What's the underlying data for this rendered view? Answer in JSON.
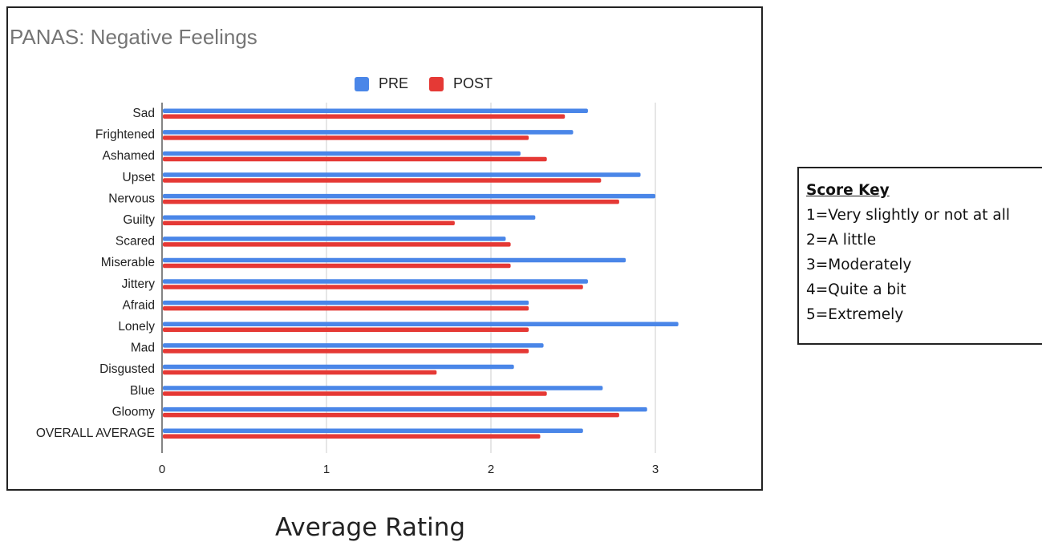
{
  "chart_data": {
    "type": "bar",
    "orientation": "horizontal",
    "title": "PANAS: Negative Feelings",
    "xlabel": "Average Rating",
    "xlim": [
      0,
      3.25
    ],
    "xticks": [
      "0",
      "1",
      "2",
      "3"
    ],
    "grid": true,
    "legend_placement": "top-center",
    "categories": [
      "Sad",
      "Frightened",
      "Ashamed",
      "Upset",
      "Nervous",
      "Guilty",
      "Scared",
      "Miserable",
      "Jittery",
      "Afraid",
      "Lonely",
      "Mad",
      "Disgusted",
      "Blue",
      "Gloomy",
      "OVERALL AVERAGE"
    ],
    "series": [
      {
        "name": "PRE",
        "color": "#4a86e8",
        "values": [
          2.59,
          2.5,
          2.18,
          2.91,
          3.0,
          2.27,
          2.09,
          2.82,
          2.59,
          2.23,
          3.14,
          2.32,
          2.14,
          2.68,
          2.95,
          2.56
        ]
      },
      {
        "name": "POST",
        "color": "#e53935",
        "values": [
          2.45,
          2.23,
          2.34,
          2.67,
          2.78,
          1.78,
          2.12,
          2.12,
          2.56,
          2.23,
          2.23,
          2.23,
          1.67,
          2.34,
          2.78,
          2.3
        ]
      }
    ]
  },
  "score_key": {
    "title": "Score Key",
    "items": [
      "1=Very slightly or not at all",
      "2=A little",
      "3=Moderately",
      "4=Quite a bit",
      "5=Extremely"
    ]
  }
}
